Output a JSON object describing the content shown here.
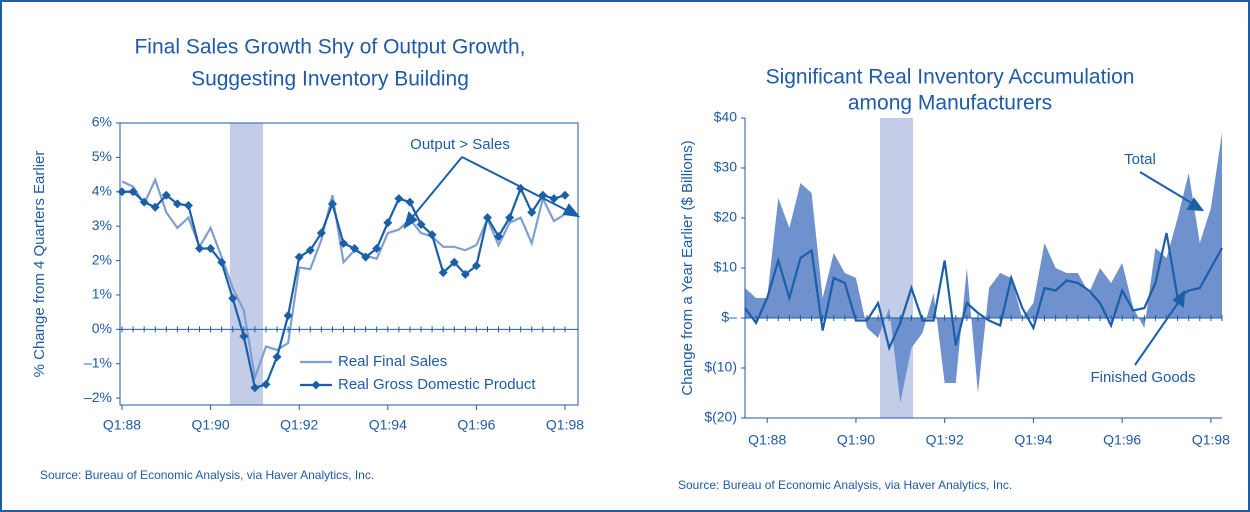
{
  "chart_data": [
    {
      "type": "line",
      "title": [
        "Final Sales Growth Shy of Output Growth,",
        "Suggesting Inventory Building"
      ],
      "y_label": "% Change from 4 Quarters Earlier",
      "source": "Source: Bureau of Economic Analysis, via Haver Analytics, Inc.",
      "annotation": "Output > Sales",
      "categories": [
        "Q1:88",
        null,
        null,
        null,
        null,
        null,
        null,
        null,
        "Q1:90",
        null,
        null,
        null,
        null,
        null,
        null,
        null,
        "Q1:92",
        null,
        null,
        null,
        null,
        null,
        null,
        null,
        "Q1:94",
        null,
        null,
        null,
        null,
        null,
        null,
        null,
        "Q1:96",
        null,
        null,
        null,
        null,
        null,
        null,
        null,
        "Q1:98"
      ],
      "series": [
        {
          "name": "Real Final Sales",
          "color": "#7f9fd2",
          "marker": false,
          "values": [
            4.3,
            4.15,
            3.65,
            4.35,
            3.4,
            2.95,
            3.25,
            2.4,
            2.95,
            2.1,
            1.2,
            0.55,
            -1.4,
            -0.5,
            -0.6,
            -0.4,
            1.8,
            1.75,
            2.6,
            3.9,
            1.95,
            2.3,
            2.15,
            2.05,
            2.8,
            2.9,
            3.2,
            2.8,
            2.7,
            2.4,
            2.4,
            2.3,
            2.45,
            3.2,
            2.45,
            3.1,
            3.25,
            2.5,
            3.8,
            3.15,
            3.35
          ]
        },
        {
          "name": "Real Gross Domestic Product",
          "color": "#1a5fa8",
          "marker": true,
          "values": [
            4.0,
            4.0,
            3.7,
            3.55,
            3.9,
            3.65,
            3.6,
            2.35,
            2.35,
            1.95,
            0.9,
            -0.2,
            -1.7,
            -1.6,
            -0.8,
            0.4,
            2.1,
            2.3,
            2.8,
            3.65,
            2.5,
            2.35,
            2.1,
            2.35,
            3.1,
            3.8,
            3.7,
            3.05,
            2.75,
            1.65,
            1.95,
            1.6,
            1.85,
            3.25,
            2.7,
            3.25,
            4.1,
            3.4,
            3.9,
            3.8,
            3.9
          ]
        }
      ],
      "ylim": [
        -2.2,
        6
      ],
      "yticks": [
        {
          "value": 6,
          "label": "6%"
        },
        {
          "value": 5,
          "label": "5%"
        },
        {
          "value": 4,
          "label": "4%"
        },
        {
          "value": 3,
          "label": "3%"
        },
        {
          "value": 2,
          "label": "2%"
        },
        {
          "value": 1,
          "label": "1%"
        },
        {
          "value": 0,
          "label": "0%"
        },
        {
          "value": -1,
          "label": "–1%"
        },
        {
          "value": -2,
          "label": "–2%"
        }
      ],
      "legend": "lower right"
    },
    {
      "type": "area",
      "title": [
        "Significant Real Inventory Accumulation",
        "among Manufacturers"
      ],
      "y_label": "Change from a Year Earlier ($ Billions)",
      "source": "Source: Bureau of Economic Analysis, via Haver Analytics, Inc.",
      "categories": [
        null,
        null,
        "Q1:88",
        null,
        null,
        null,
        null,
        null,
        null,
        null,
        "Q1:90",
        null,
        null,
        null,
        null,
        null,
        null,
        null,
        "Q1:92",
        null,
        null,
        null,
        null,
        null,
        null,
        null,
        "Q1:94",
        null,
        null,
        null,
        null,
        null,
        null,
        null,
        "Q1:96",
        null,
        null,
        null,
        null,
        null,
        null,
        null,
        "Q1:98",
        null
      ],
      "series": [
        {
          "name": "Total",
          "color": "#6f91cd",
          "kind": "area",
          "values": [
            6,
            4,
            4,
            24,
            18,
            27,
            25,
            4,
            13,
            9,
            8,
            -2,
            -4,
            2,
            -17,
            -6,
            -3,
            5,
            -13,
            -13,
            10,
            -15,
            6,
            9,
            8,
            0,
            3,
            15,
            10,
            9,
            9,
            5,
            10,
            7,
            11,
            2,
            -2,
            14,
            12,
            20,
            29,
            15,
            22,
            37
          ]
        },
        {
          "name": "Finished Goods",
          "color": "#1a5fa8",
          "kind": "line",
          "values": [
            2,
            -1,
            4,
            11.5,
            4,
            12,
            13.5,
            -2.5,
            8,
            7,
            -0.5,
            -0.5,
            3,
            -6,
            -1,
            6,
            -0.5,
            -0.5,
            11.5,
            -5.5,
            3,
            1,
            -0.5,
            -1.5,
            8,
            2,
            -2,
            6,
            5.5,
            7.5,
            7,
            5.5,
            3,
            -1.5,
            5.5,
            1.5,
            2,
            7,
            17,
            4,
            5.5,
            6,
            10,
            14
          ]
        }
      ],
      "ylim": [
        -20,
        40
      ],
      "yticks": [
        {
          "value": 40,
          "label": "$40"
        },
        {
          "value": 30,
          "label": "$30"
        },
        {
          "value": 20,
          "label": "$20"
        },
        {
          "value": 10,
          "label": "$10"
        },
        {
          "value": 0,
          "label": "$–"
        },
        {
          "value": -10,
          "label": "$(10)"
        },
        {
          "value": -20,
          "label": "$(20)"
        }
      ]
    }
  ]
}
